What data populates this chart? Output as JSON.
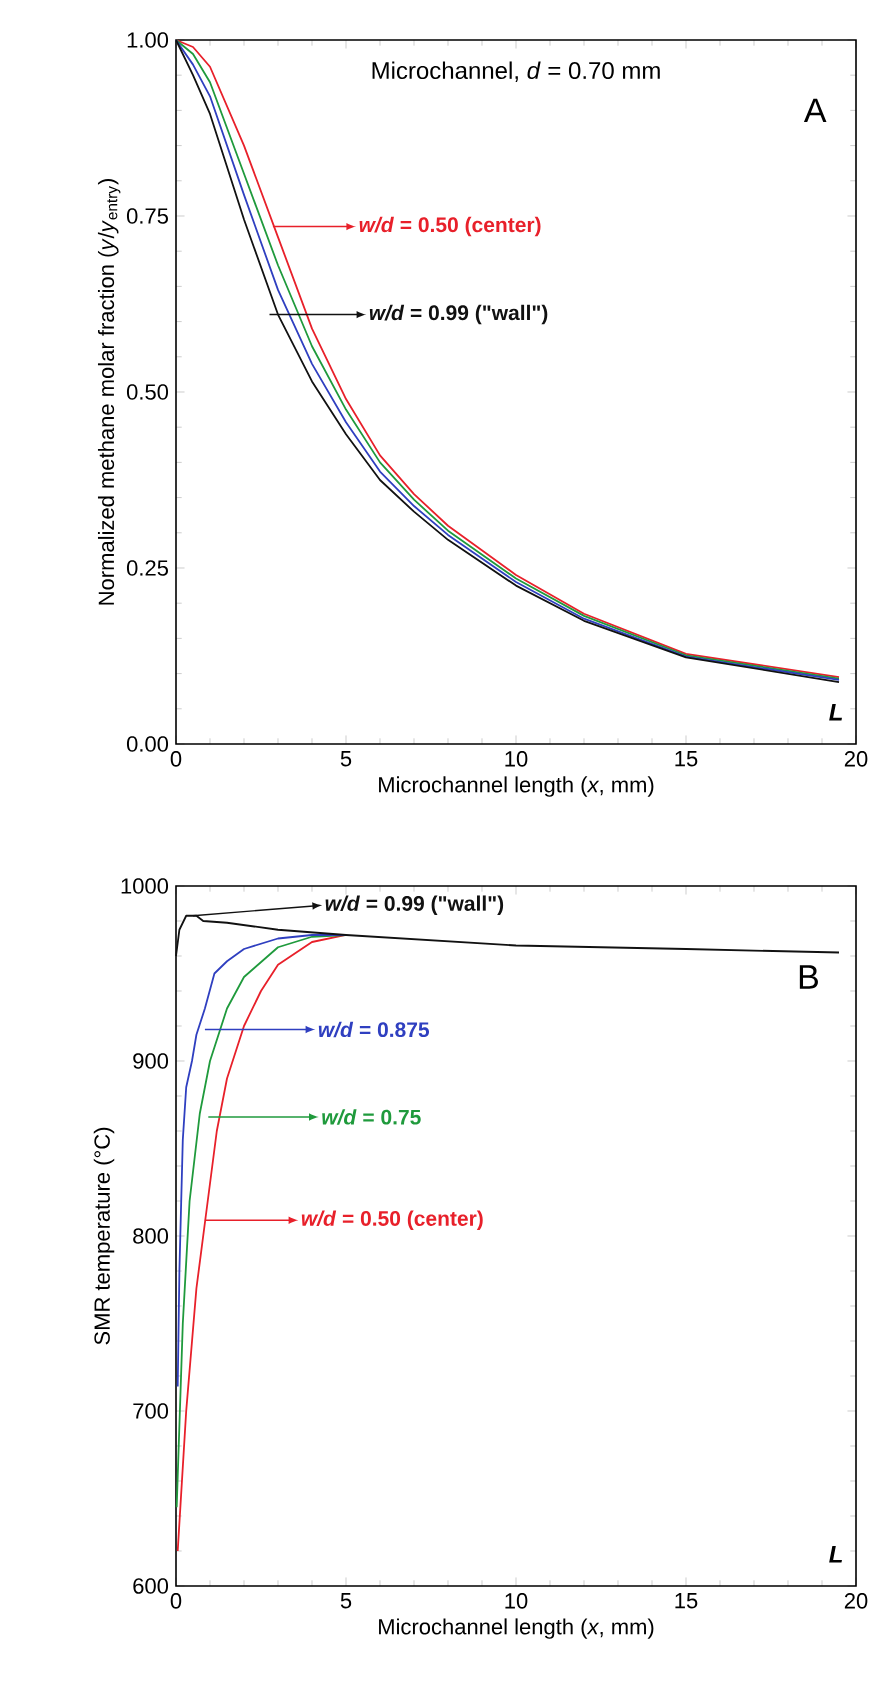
{
  "chart_data": [
    {
      "type": "line",
      "xlabel": "Microchannel length (*x*, mm)",
      "ylabel": "Normalized methane molar fraction (*y*/*y*$_{entry}$)",
      "annotations": [
        "Microchannel, *d* = 0.70 mm",
        "A",
        "L"
      ],
      "legend": "top",
      "xlim": [
        0,
        20
      ],
      "ylim": [
        0,
        1
      ],
      "xticks": [
        0,
        5,
        10,
        15,
        20
      ],
      "yticks": [
        {
          "value": 0,
          "label": "0.00"
        },
        {
          "value": 0.25,
          "label": "0.25"
        },
        {
          "value": 0.5,
          "label": "0.50"
        },
        {
          "value": 0.75,
          "label": "0.75"
        },
        {
          "value": 1,
          "label": "1.00"
        }
      ],
      "series": [
        {
          "name": "*w/d* = 0.50 (center)",
          "color": "#e8202a",
          "x": [
            0,
            0.5,
            1,
            2,
            3,
            4,
            5,
            6,
            7,
            8,
            10,
            12,
            15,
            19.5
          ],
          "values": [
            1.0,
            0.99,
            0.962,
            0.85,
            0.72,
            0.59,
            0.49,
            0.41,
            0.355,
            0.31,
            0.24,
            0.185,
            0.128,
            0.095
          ]
        },
        {
          "color": "#1f9a3c",
          "x": [
            0,
            0.5,
            1,
            2,
            3,
            4,
            5,
            6,
            7,
            8,
            10,
            12,
            15,
            19.5
          ],
          "values": [
            1.0,
            0.98,
            0.94,
            0.81,
            0.68,
            0.565,
            0.475,
            0.4,
            0.347,
            0.303,
            0.235,
            0.182,
            0.126,
            0.093
          ]
        },
        {
          "color": "#2f3fc0",
          "x": [
            0,
            0.5,
            1,
            2,
            3,
            4,
            5,
            6,
            7,
            8,
            10,
            12,
            15,
            19.5
          ],
          "values": [
            1.0,
            0.965,
            0.92,
            0.78,
            0.645,
            0.54,
            0.457,
            0.387,
            0.338,
            0.297,
            0.23,
            0.178,
            0.124,
            0.091
          ]
        },
        {
          "name": "*w/d* = 0.99 (\"wall\")",
          "color": "#111111",
          "x": [
            0,
            0.5,
            1,
            2,
            3,
            4,
            5,
            6,
            7,
            8,
            10,
            12,
            15,
            19.5
          ],
          "values": [
            1.0,
            0.95,
            0.895,
            0.745,
            0.61,
            0.515,
            0.44,
            0.375,
            0.33,
            0.29,
            0.225,
            0.175,
            0.123,
            0.088
          ]
        }
      ]
    },
    {
      "type": "line",
      "xlabel": "Microchannel length (*x*, mm)",
      "ylabel": "SMR temperature (°C)",
      "annotations": [
        "B",
        "L"
      ],
      "legend": "top left",
      "xlim": [
        0,
        20
      ],
      "ylim": [
        600,
        1000
      ],
      "xticks": [
        0,
        5,
        10,
        15,
        20
      ],
      "yticks": [
        600,
        700,
        800,
        900,
        1000
      ],
      "series": [
        {
          "name": "*w/d* = 0.50 (center)",
          "color": "#e8202a",
          "x": [
            0.05,
            0.3,
            0.6,
            0.9,
            1.2,
            1.5,
            2,
            2.5,
            3,
            4,
            5
          ],
          "values": [
            620,
            700,
            770,
            815,
            860,
            890,
            920,
            940,
            955,
            968,
            972
          ]
        },
        {
          "name": "*w/d* = 0.75",
          "color": "#1f9a3c",
          "x": [
            0.02,
            0.2,
            0.4,
            0.7,
            1,
            1.5,
            2,
            3,
            4,
            5
          ],
          "values": [
            645,
            750,
            820,
            870,
            900,
            930,
            948,
            965,
            971,
            972
          ]
        },
        {
          "name": "*w/d* = 0.875",
          "color": "#2f3fc0",
          "x": [
            0.05,
            0.1,
            0.2,
            0.3,
            0.47,
            0.6,
            0.85,
            1.13,
            1.5,
            2,
            3,
            4,
            5
          ],
          "values": [
            714,
            780,
            855,
            885,
            900,
            915,
            930,
            950,
            957,
            964,
            970,
            972,
            972
          ]
        },
        {
          "name": "*w/d* = 0.99 (\"wall\")",
          "color": "#111111",
          "x": [
            0,
            0.1,
            0.3,
            0.6,
            0.8,
            1.5,
            3,
            5,
            10,
            15,
            19.5
          ],
          "values": [
            960,
            975,
            983,
            983,
            980,
            979,
            975,
            972,
            966,
            964,
            962
          ]
        }
      ]
    }
  ]
}
